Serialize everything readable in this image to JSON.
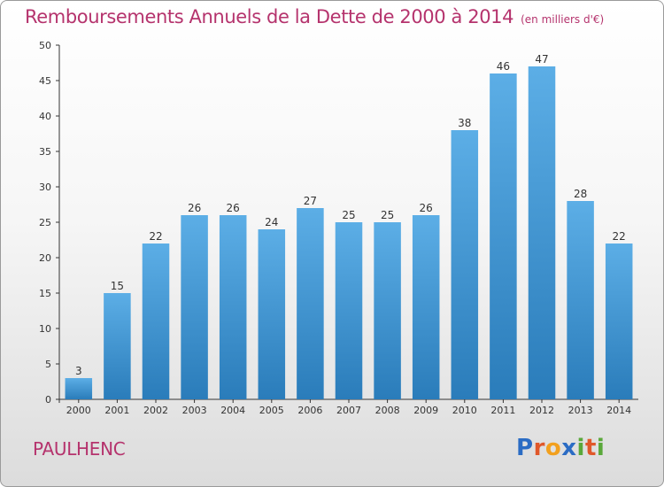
{
  "header": {
    "title": "Remboursements Annuels de la Dette de 2000 à 2014",
    "unit": "(en milliers d'€)"
  },
  "footer": {
    "commune": "PAULHENC",
    "logo_letters": [
      {
        "ch": "P",
        "color": "#2b6cc4"
      },
      {
        "ch": "r",
        "color": "#e0582a"
      },
      {
        "ch": "o",
        "color": "#f2a01e"
      },
      {
        "ch": "x",
        "color": "#2b6cc4"
      },
      {
        "ch": "i",
        "color": "#5aa83a"
      },
      {
        "ch": "t",
        "color": "#e0582a"
      },
      {
        "ch": "i",
        "color": "#5aa83a"
      }
    ]
  },
  "chart_data": {
    "type": "bar",
    "categories": [
      "2000",
      "2001",
      "2002",
      "2003",
      "2004",
      "2005",
      "2006",
      "2007",
      "2008",
      "2009",
      "2010",
      "2011",
      "2012",
      "2013",
      "2014"
    ],
    "values": [
      3,
      15,
      22,
      26,
      26,
      24,
      27,
      25,
      25,
      26,
      38,
      46,
      47,
      28,
      22
    ],
    "ylim": [
      0,
      50
    ],
    "yticks": [
      0,
      5,
      10,
      15,
      20,
      25,
      30,
      35,
      40,
      45,
      50
    ],
    "grid": false,
    "bar_color_top": "#5caee6",
    "bar_color_bottom": "#2a7cba",
    "axis_color": "#333333"
  }
}
